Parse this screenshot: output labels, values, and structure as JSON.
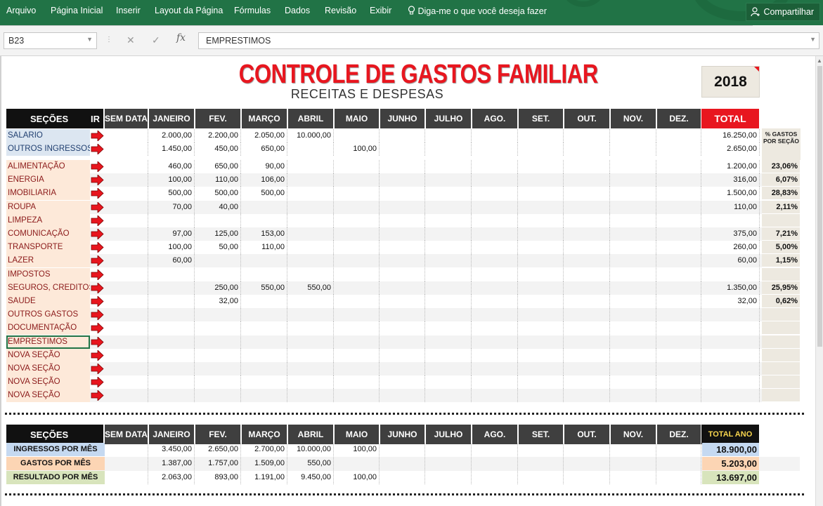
{
  "ribbon": {
    "tabs": [
      "Arquivo",
      "Página Inicial",
      "Inserir",
      "Layout da Página",
      "Fórmulas",
      "Dados",
      "Revisão",
      "Exibir"
    ],
    "tell_me": "Diga-me o que você deseja fazer",
    "share": "Compartilhar"
  },
  "formula_bar": {
    "name_box": "B23",
    "content": "EMPRESTIMOS"
  },
  "sheet": {
    "title": "CONTROLE DE GASTOS FAMILIAR",
    "subtitle": "RECEITAS E DESPESAS",
    "year": "2018",
    "header_col1": "SEÇÕES",
    "header_ir": "IR",
    "months": [
      "SEM DATA",
      "JANEIRO",
      "FEV.",
      "MARÇO",
      "ABRIL",
      "MAIO",
      "JUNHO",
      "JULHO",
      "AGO.",
      "SET.",
      "OUT.",
      "NOV.",
      "DEZ."
    ],
    "total_label": "TOTAL",
    "pct_header": "% GASTOS POR SEÇÃO",
    "income_rows": [
      {
        "label": "SALARIO",
        "values": [
          "",
          "2.000,00",
          "2.200,00",
          "2.050,00",
          "10.000,00",
          "",
          "",
          "",
          "",
          "",
          "",
          "",
          ""
        ],
        "total": "16.250,00"
      },
      {
        "label": "OUTROS INGRESSOS",
        "values": [
          "",
          "1.450,00",
          "450,00",
          "650,00",
          "",
          "100,00",
          "",
          "",
          "",
          "",
          "",
          "",
          ""
        ],
        "total": "2.650,00"
      }
    ],
    "expense_rows": [
      {
        "label": "ALIMENTAÇÃO",
        "values": [
          "",
          "460,00",
          "650,00",
          "90,00",
          "",
          "",
          "",
          "",
          "",
          "",
          "",
          "",
          ""
        ],
        "total": "1.200,00",
        "pct": "23,06%"
      },
      {
        "label": "ENERGIA",
        "values": [
          "",
          "100,00",
          "110,00",
          "106,00",
          "",
          "",
          "",
          "",
          "",
          "",
          "",
          "",
          ""
        ],
        "total": "316,00",
        "pct": "6,07%"
      },
      {
        "label": "IMOBILIARIA",
        "values": [
          "",
          "500,00",
          "500,00",
          "500,00",
          "",
          "",
          "",
          "",
          "",
          "",
          "",
          "",
          ""
        ],
        "total": "1.500,00",
        "pct": "28,83%"
      },
      {
        "label": "ROUPA",
        "values": [
          "",
          "70,00",
          "40,00",
          "",
          "",
          "",
          "",
          "",
          "",
          "",
          "",
          "",
          ""
        ],
        "total": "110,00",
        "pct": "2,11%"
      },
      {
        "label": "LIMPEZA",
        "values": [
          "",
          "",
          "",
          "",
          "",
          "",
          "",
          "",
          "",
          "",
          "",
          "",
          ""
        ],
        "total": "",
        "pct": ""
      },
      {
        "label": "COMUNICAÇÃO",
        "values": [
          "",
          "97,00",
          "125,00",
          "153,00",
          "",
          "",
          "",
          "",
          "",
          "",
          "",
          "",
          ""
        ],
        "total": "375,00",
        "pct": "7,21%"
      },
      {
        "label": "TRANSPORTE",
        "values": [
          "",
          "100,00",
          "50,00",
          "110,00",
          "",
          "",
          "",
          "",
          "",
          "",
          "",
          "",
          ""
        ],
        "total": "260,00",
        "pct": "5,00%"
      },
      {
        "label": "LAZER",
        "values": [
          "",
          "60,00",
          "",
          "",
          "",
          "",
          "",
          "",
          "",
          "",
          "",
          "",
          ""
        ],
        "total": "60,00",
        "pct": "1,15%"
      },
      {
        "label": "IMPOSTOS",
        "values": [
          "",
          "",
          "",
          "",
          "",
          "",
          "",
          "",
          "",
          "",
          "",
          "",
          ""
        ],
        "total": "",
        "pct": ""
      },
      {
        "label": "SEGUROS, CREDITOS",
        "values": [
          "",
          "",
          "250,00",
          "550,00",
          "550,00",
          "",
          "",
          "",
          "",
          "",
          "",
          "",
          ""
        ],
        "total": "1.350,00",
        "pct": "25,95%"
      },
      {
        "label": "SAUDE",
        "values": [
          "",
          "",
          "32,00",
          "",
          "",
          "",
          "",
          "",
          "",
          "",
          "",
          "",
          ""
        ],
        "total": "32,00",
        "pct": "0,62%"
      },
      {
        "label": "OUTROS GASTOS",
        "values": [
          "",
          "",
          "",
          "",
          "",
          "",
          "",
          "",
          "",
          "",
          "",
          "",
          ""
        ],
        "total": "",
        "pct": ""
      },
      {
        "label": "DOCUMENTAÇÃO",
        "values": [
          "",
          "",
          "",
          "",
          "",
          "",
          "",
          "",
          "",
          "",
          "",
          "",
          ""
        ],
        "total": "",
        "pct": ""
      },
      {
        "label": "EMPRESTIMOS",
        "values": [
          "",
          "",
          "",
          "",
          "",
          "",
          "",
          "",
          "",
          "",
          "",
          "",
          ""
        ],
        "total": "",
        "pct": ""
      },
      {
        "label": "NOVA SEÇÃO",
        "values": [
          "",
          "",
          "",
          "",
          "",
          "",
          "",
          "",
          "",
          "",
          "",
          "",
          ""
        ],
        "total": "",
        "pct": ""
      },
      {
        "label": "NOVA SEÇÃO",
        "values": [
          "",
          "",
          "",
          "",
          "",
          "",
          "",
          "",
          "",
          "",
          "",
          "",
          ""
        ],
        "total": "",
        "pct": ""
      },
      {
        "label": "NOVA SEÇÃO",
        "values": [
          "",
          "",
          "",
          "",
          "",
          "",
          "",
          "",
          "",
          "",
          "",
          "",
          ""
        ],
        "total": "",
        "pct": ""
      },
      {
        "label": "NOVA SEÇÃO",
        "values": [
          "",
          "",
          "",
          "",
          "",
          "",
          "",
          "",
          "",
          "",
          "",
          "",
          ""
        ],
        "total": "",
        "pct": ""
      }
    ],
    "summary": {
      "total_label": "TOTAL ANO",
      "rows": [
        {
          "label": "INGRESSOS POR MÊS",
          "values": [
            "",
            "3.450,00",
            "2.650,00",
            "2.700,00",
            "10.000,00",
            "100,00",
            "",
            "",
            "",
            "",
            "",
            "",
            ""
          ],
          "total": "18.900,00",
          "color": "#c5d9f1"
        },
        {
          "label": "GASTOS POR MÊS",
          "values": [
            "",
            "1.387,00",
            "1.757,00",
            "1.509,00",
            "550,00",
            "",
            "",
            "",
            "",
            "",
            "",
            "",
            ""
          ],
          "total": "5.203,00",
          "color": "#fcd5b4"
        },
        {
          "label": "RESULTADO POR MÊS",
          "values": [
            "",
            "2.063,00",
            "893,00",
            "1.191,00",
            "9.450,00",
            "100,00",
            "",
            "",
            "",
            "",
            "",
            "",
            ""
          ],
          "total": "13.697,00",
          "color": "#d8e4bc"
        }
      ]
    }
  },
  "colors": {
    "ribbon": "#217346",
    "title": "#e8161f",
    "header": "#3f3f3f"
  }
}
